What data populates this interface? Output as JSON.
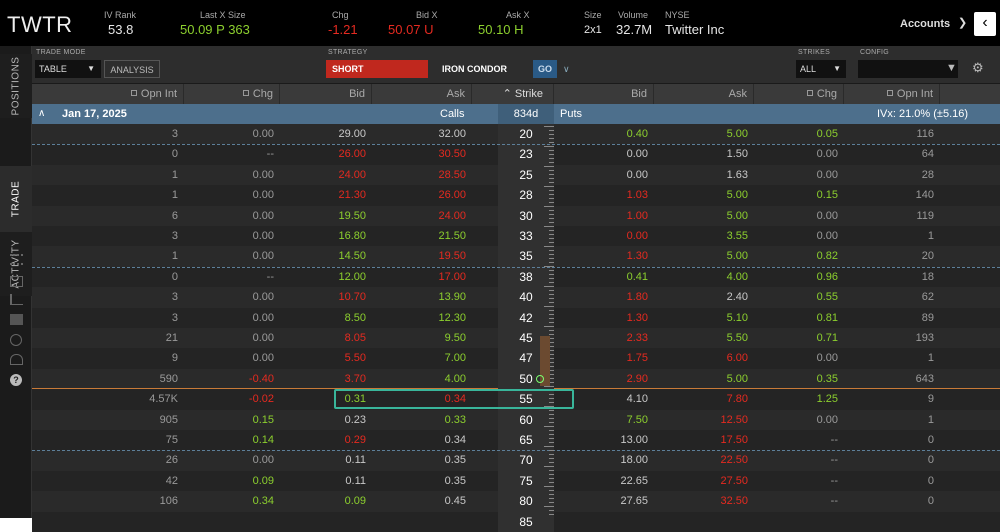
{
  "header": {
    "symbol": "TWTR",
    "iv_rank": {
      "label": "IV Rank",
      "value": "53.8"
    },
    "last_x_size": {
      "label": "Last X Size",
      "value": "50.09 P 363"
    },
    "chg": {
      "label": "Chg",
      "value": "-1.21"
    },
    "bid_x": {
      "label": "Bid X",
      "value": "50.07 U"
    },
    "ask_x": {
      "label": "Ask X",
      "value": "50.10 H"
    },
    "size": {
      "label": "Size",
      "value": "2x1"
    },
    "volume": {
      "label": "Volume",
      "value": "32.7M"
    },
    "exchange": {
      "label": "NYSE",
      "value": "Twitter Inc"
    },
    "accounts_label": "Accounts"
  },
  "sidebar": {
    "tabs": [
      "POSITIONS",
      "TRADE",
      "ACTIVITY"
    ]
  },
  "toolbar": {
    "trade_mode_label": "TRADE MODE",
    "trade_mode_value": "TABLE",
    "analysis_label": "ANALYSIS",
    "strategy_label": "STRATEGY",
    "short_label": "SHORT",
    "strategy_value": "IRON CONDOR",
    "go_label": "GO",
    "strikes_label": "STRIKES",
    "strikes_value": "ALL",
    "config_label": "CONFIG"
  },
  "columns": {
    "opn_int": "Opn Int",
    "chg": "Chg",
    "bid": "Bid",
    "ask": "Ask",
    "strike": "Strike"
  },
  "expiration": {
    "date": "Jan 17, 2025",
    "calls": "Calls",
    "days": "834d",
    "puts": "Puts",
    "ivx": "IVx: 21.0% (±5.16)"
  },
  "colors": {
    "green": "#8ccf2e",
    "red": "#e52a20",
    "accent": "#39b59a",
    "header_blue": "#4d6f8c"
  },
  "rows": [
    {
      "c_oi": "3",
      "c_chg": "0.00",
      "c_bid": "29.00",
      "c_ask": "32.00",
      "strike": "20",
      "p_bid": "0.40",
      "p_ask": "5.00",
      "p_chg": "0.05",
      "p_oi": "116",
      "cc": [
        "n",
        "n",
        "w",
        "w"
      ],
      "pc": [
        "g",
        "g",
        "g",
        "n"
      ]
    },
    {
      "c_oi": "0",
      "c_chg": "--",
      "c_bid": "26.00",
      "c_ask": "30.50",
      "strike": "23",
      "p_bid": "0.00",
      "p_ask": "1.50",
      "p_chg": "0.00",
      "p_oi": "64",
      "cc": [
        "n",
        "n",
        "r",
        "r"
      ],
      "pc": [
        "w",
        "w",
        "n",
        "n"
      ]
    },
    {
      "c_oi": "1",
      "c_chg": "0.00",
      "c_bid": "24.00",
      "c_ask": "28.50",
      "strike": "25",
      "p_bid": "0.00",
      "p_ask": "1.63",
      "p_chg": "0.00",
      "p_oi": "28",
      "cc": [
        "n",
        "n",
        "r",
        "r"
      ],
      "pc": [
        "w",
        "w",
        "n",
        "n"
      ]
    },
    {
      "c_oi": "1",
      "c_chg": "0.00",
      "c_bid": "21.30",
      "c_ask": "26.00",
      "strike": "28",
      "p_bid": "1.03",
      "p_ask": "5.00",
      "p_chg": "0.15",
      "p_oi": "140",
      "cc": [
        "n",
        "n",
        "r",
        "r"
      ],
      "pc": [
        "r",
        "g",
        "g",
        "n"
      ]
    },
    {
      "c_oi": "6",
      "c_chg": "0.00",
      "c_bid": "19.50",
      "c_ask": "24.00",
      "strike": "30",
      "p_bid": "1.00",
      "p_ask": "5.00",
      "p_chg": "0.00",
      "p_oi": "119",
      "cc": [
        "n",
        "n",
        "g",
        "r"
      ],
      "pc": [
        "r",
        "g",
        "n",
        "n"
      ]
    },
    {
      "c_oi": "3",
      "c_chg": "0.00",
      "c_bid": "16.80",
      "c_ask": "21.50",
      "strike": "33",
      "p_bid": "0.00",
      "p_ask": "3.55",
      "p_chg": "0.00",
      "p_oi": "1",
      "cc": [
        "n",
        "n",
        "g",
        "g"
      ],
      "pc": [
        "r",
        "g",
        "n",
        "n"
      ]
    },
    {
      "c_oi": "1",
      "c_chg": "0.00",
      "c_bid": "14.50",
      "c_ask": "19.50",
      "strike": "35",
      "p_bid": "1.30",
      "p_ask": "5.00",
      "p_chg": "0.82",
      "p_oi": "20",
      "cc": [
        "n",
        "n",
        "g",
        "r"
      ],
      "pc": [
        "r",
        "g",
        "g",
        "n"
      ]
    },
    {
      "c_oi": "0",
      "c_chg": "--",
      "c_bid": "12.00",
      "c_ask": "17.00",
      "strike": "38",
      "p_bid": "0.41",
      "p_ask": "4.00",
      "p_chg": "0.96",
      "p_oi": "18",
      "cc": [
        "n",
        "n",
        "g",
        "r"
      ],
      "pc": [
        "g",
        "g",
        "g",
        "n"
      ]
    },
    {
      "c_oi": "3",
      "c_chg": "0.00",
      "c_bid": "10.70",
      "c_ask": "13.90",
      "strike": "40",
      "p_bid": "1.80",
      "p_ask": "2.40",
      "p_chg": "0.55",
      "p_oi": "62",
      "cc": [
        "n",
        "n",
        "r",
        "g"
      ],
      "pc": [
        "r",
        "w",
        "g",
        "n"
      ]
    },
    {
      "c_oi": "3",
      "c_chg": "0.00",
      "c_bid": "8.50",
      "c_ask": "12.30",
      "strike": "42",
      "p_bid": "1.30",
      "p_ask": "5.10",
      "p_chg": "0.81",
      "p_oi": "89",
      "cc": [
        "n",
        "n",
        "g",
        "g"
      ],
      "pc": [
        "r",
        "g",
        "g",
        "n"
      ]
    },
    {
      "c_oi": "21",
      "c_chg": "0.00",
      "c_bid": "8.05",
      "c_ask": "9.50",
      "strike": "45",
      "p_bid": "2.33",
      "p_ask": "5.50",
      "p_chg": "0.71",
      "p_oi": "193",
      "cc": [
        "n",
        "n",
        "r",
        "g"
      ],
      "pc": [
        "r",
        "g",
        "g",
        "n"
      ]
    },
    {
      "c_oi": "9",
      "c_chg": "0.00",
      "c_bid": "5.50",
      "c_ask": "7.00",
      "strike": "47",
      "p_bid": "1.75",
      "p_ask": "6.00",
      "p_chg": "0.00",
      "p_oi": "1",
      "cc": [
        "n",
        "n",
        "r",
        "g"
      ],
      "pc": [
        "r",
        "r",
        "n",
        "n"
      ]
    },
    {
      "c_oi": "590",
      "c_chg": "-0.40",
      "c_bid": "3.70",
      "c_ask": "4.00",
      "strike": "50",
      "p_bid": "2.90",
      "p_ask": "5.00",
      "p_chg": "0.35",
      "p_oi": "643",
      "cc": [
        "n",
        "r",
        "r",
        "g"
      ],
      "pc": [
        "r",
        "g",
        "g",
        "n"
      ]
    },
    {
      "c_oi": "4.57K",
      "c_chg": "-0.02",
      "c_bid": "0.31",
      "c_ask": "0.34",
      "strike": "55",
      "p_bid": "4.10",
      "p_ask": "7.80",
      "p_chg": "1.25",
      "p_oi": "9",
      "cc": [
        "n",
        "r",
        "g",
        "r"
      ],
      "pc": [
        "w",
        "r",
        "g",
        "n"
      ]
    },
    {
      "c_oi": "905",
      "c_chg": "0.15",
      "c_bid": "0.23",
      "c_ask": "0.33",
      "strike": "60",
      "p_bid": "7.50",
      "p_ask": "12.50",
      "p_chg": "0.00",
      "p_oi": "1",
      "cc": [
        "n",
        "g",
        "w",
        "g"
      ],
      "pc": [
        "g",
        "r",
        "n",
        "n"
      ]
    },
    {
      "c_oi": "75",
      "c_chg": "0.14",
      "c_bid": "0.29",
      "c_ask": "0.34",
      "strike": "65",
      "p_bid": "13.00",
      "p_ask": "17.50",
      "p_chg": "--",
      "p_oi": "0",
      "cc": [
        "n",
        "g",
        "r",
        "w"
      ],
      "pc": [
        "w",
        "r",
        "n",
        "n"
      ]
    },
    {
      "c_oi": "26",
      "c_chg": "0.00",
      "c_bid": "0.11",
      "c_ask": "0.35",
      "strike": "70",
      "p_bid": "18.00",
      "p_ask": "22.50",
      "p_chg": "--",
      "p_oi": "0",
      "cc": [
        "n",
        "n",
        "w",
        "w"
      ],
      "pc": [
        "w",
        "r",
        "n",
        "n"
      ]
    },
    {
      "c_oi": "42",
      "c_chg": "0.09",
      "c_bid": "0.11",
      "c_ask": "0.35",
      "strike": "75",
      "p_bid": "22.65",
      "p_ask": "27.50",
      "p_chg": "--",
      "p_oi": "0",
      "cc": [
        "n",
        "g",
        "w",
        "w"
      ],
      "pc": [
        "w",
        "r",
        "n",
        "n"
      ]
    },
    {
      "c_oi": "106",
      "c_chg": "0.34",
      "c_bid": "0.09",
      "c_ask": "0.45",
      "strike": "80",
      "p_bid": "27.65",
      "p_ask": "32.50",
      "p_chg": "--",
      "p_oi": "0",
      "cc": [
        "n",
        "g",
        "g",
        "w"
      ],
      "pc": [
        "w",
        "r",
        "n",
        "n"
      ]
    },
    {
      "c_oi": "",
      "c_chg": "",
      "c_bid": "",
      "c_ask": "",
      "strike": "85",
      "p_bid": "",
      "p_ask": "",
      "p_chg": "",
      "p_oi": "",
      "cc": [
        "n",
        "n",
        "n",
        "n"
      ],
      "pc": [
        "n",
        "n",
        "n",
        "n"
      ]
    }
  ]
}
